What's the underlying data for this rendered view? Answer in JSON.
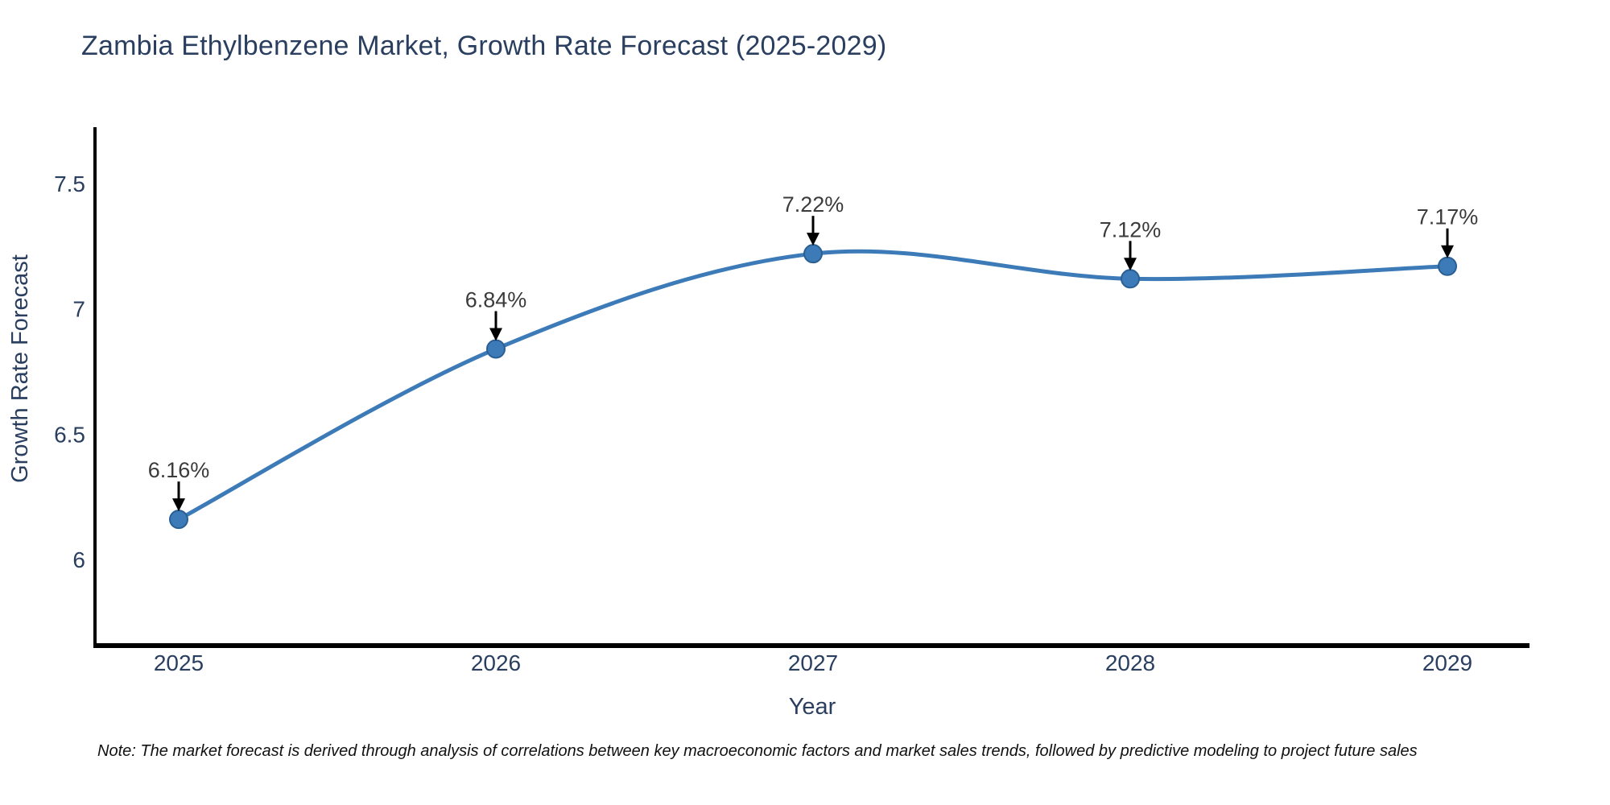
{
  "chart_data": {
    "type": "line",
    "title": "Zambia Ethylbenzene Market, Growth Rate Forecast (2025-2029)",
    "xlabel": "Year",
    "ylabel": "Growth Rate Forecast",
    "categories": [
      "2025",
      "2026",
      "2027",
      "2028",
      "2029"
    ],
    "x": [
      2025,
      2026,
      2027,
      2028,
      2029
    ],
    "series": [
      {
        "name": "Growth Rate Forecast",
        "values": [
          6.16,
          6.84,
          7.22,
          7.12,
          7.17
        ],
        "point_labels": [
          "6.16%",
          "6.84%",
          "7.22%",
          "7.12%",
          "7.17%"
        ]
      }
    ],
    "ytick_labels": [
      "6",
      "6.5",
      "7",
      "7.5"
    ],
    "yticks": [
      6,
      6.5,
      7,
      7.5
    ],
    "ylim": [
      5.66,
      7.72
    ],
    "xlim": [
      2024.74,
      2029.26
    ],
    "line_shape": "spline",
    "grid": false,
    "legend_position": "none",
    "annotation_style": "black arrows pointing down to each marker with percentage labels above"
  },
  "note": "Note: The market forecast is derived through analysis of correlations between key macroeconomic factors and market sales trends, followed by predictive modeling to project future sales",
  "colors": {
    "line": "#3c7bb8",
    "marker_fill": "#3c7bb8",
    "marker_edge": "#2a5f93",
    "axis": "#000000",
    "title": "#2a3f5f",
    "axis_label": "#2a3f5f",
    "tick_label": "#2a3f5f",
    "point_label": "#3b3b3b",
    "arrow": "#000000",
    "background": "#ffffff"
  }
}
